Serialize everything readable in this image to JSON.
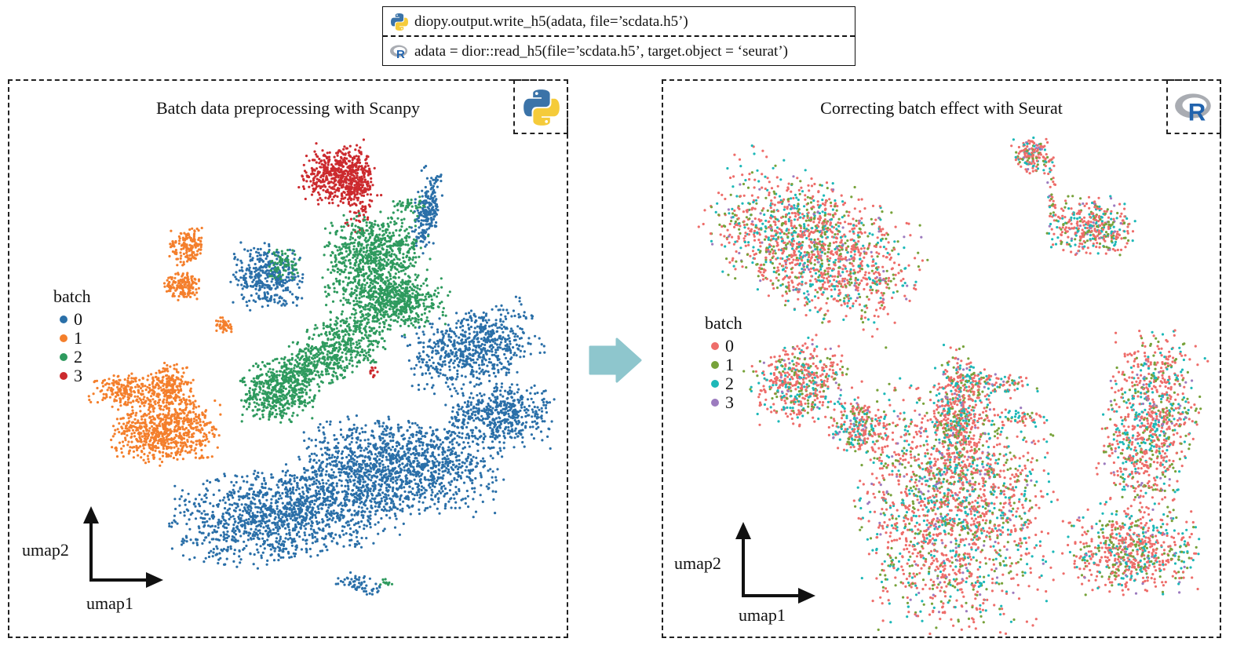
{
  "code": {
    "python_line": "diopy.output.write_h5(adata, file=’scdata.h5’)",
    "r_line": "adata = dior::read_h5(file=’scdata.h5’, target.object = ‘seurat’)"
  },
  "left_panel": {
    "title": "Batch data preprocessing with Scanpy",
    "logo": "python-logo",
    "legend_title": "batch",
    "legend": [
      {
        "label": "0",
        "color": "#2a6fa8"
      },
      {
        "label": "1",
        "color": "#f47f2c"
      },
      {
        "label": "2",
        "color": "#2e9a5e"
      },
      {
        "label": "3",
        "color": "#cc2a2e"
      }
    ],
    "xlabel": "umap1",
    "ylabel": "umap2"
  },
  "right_panel": {
    "title": "Correcting batch effect  with Seurat",
    "logo": "r-logo",
    "legend_title": "batch",
    "legend": [
      {
        "label": "0",
        "color": "#ee6d6a"
      },
      {
        "label": "1",
        "color": "#77a23a"
      },
      {
        "label": "2",
        "color": "#1db8b8"
      },
      {
        "label": "3",
        "color": "#9c7bbf"
      }
    ],
    "xlabel": "umap1",
    "ylabel": "umap2"
  },
  "arrow_color": "#8ec6cd"
}
